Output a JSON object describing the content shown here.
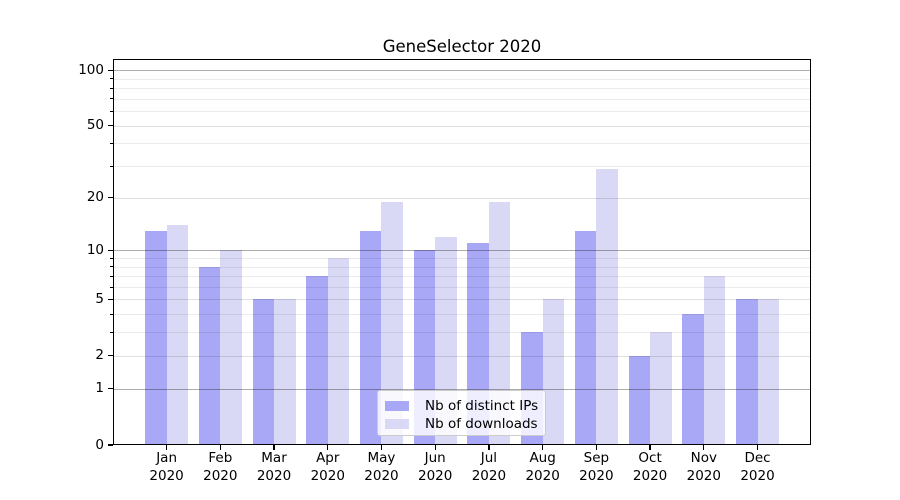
{
  "title": "GeneSelector 2020",
  "chart_data": {
    "type": "bar",
    "title": "GeneSelector 2020",
    "categories": [
      "Jan",
      "Feb",
      "Mar",
      "Apr",
      "May",
      "Jun",
      "Jul",
      "Aug",
      "Sep",
      "Oct",
      "Nov",
      "Dec"
    ],
    "category_year": "2020",
    "series": [
      {
        "name": "Nb of distinct IPs",
        "color": "#a8a8f7",
        "values": [
          13,
          8,
          5,
          7,
          13,
          10,
          11,
          3,
          13,
          2,
          4,
          5
        ]
      },
      {
        "name": "Nb of downloads",
        "color": "#d9d9f6",
        "values": [
          14,
          10,
          5,
          9,
          19,
          12,
          19,
          5,
          29,
          3,
          7,
          5
        ]
      }
    ],
    "yscale": "log1p",
    "ylim": [
      0,
      115
    ],
    "yticks_labeled": [
      0,
      1,
      2,
      5,
      10,
      20,
      50,
      100
    ],
    "grid_major": [
      1,
      10,
      100
    ],
    "grid_mid": [
      2,
      5,
      20,
      50
    ],
    "grid_minor": [
      3,
      4,
      6,
      7,
      8,
      9,
      30,
      40,
      60,
      70,
      80,
      90
    ],
    "grid": true,
    "legend_position": "lower center",
    "xlabel": "",
    "ylabel": ""
  },
  "colors": {
    "spine": "#000000",
    "grid_major": "rgba(0,0,0,0.32)",
    "grid_mid": "rgba(0,0,0,0.12)",
    "grid_minor": "rgba(0,0,0,0.08)",
    "background": "#ffffff"
  }
}
